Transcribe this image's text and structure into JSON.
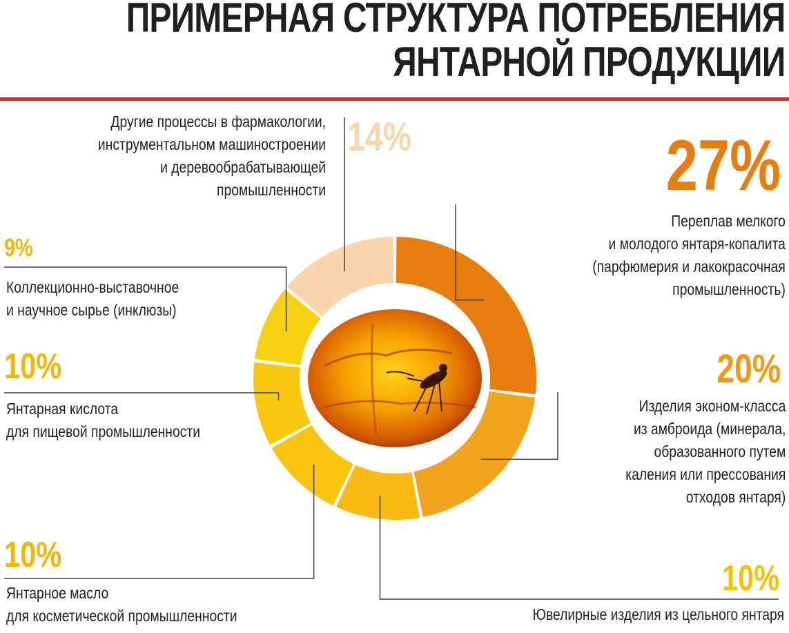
{
  "title": {
    "line1": "ПРИМЕРНАЯ СТРУКТУРА ПОТРЕБЛЕНИЯ",
    "line2": "ЯНТАРНОЙ ПРОДУКЦИИ"
  },
  "colors": {
    "rule": "#e2261c",
    "text": "#231f20"
  },
  "chart_data": {
    "type": "pie",
    "variant": "donut",
    "title": "ПРИМЕРНАЯ СТРУКТУРА ПОТРЕБЛЕНИЯ ЯНТАРНОЙ ПРОДУКЦИИ",
    "unit": "%",
    "slices": [
      {
        "value": 27,
        "label": "27%",
        "description": "Переплав мелкого\nи молодого янтаря-копалита\n(парфюмерия и лакокрасочная\nпромышленность)",
        "color": "#e87d0d"
      },
      {
        "value": 20,
        "label": "20%",
        "description": "Изделия эконом-класса\nиз амброида (минерала,\nобразованного путем\nкаления или прессования\nотходов янтаря)",
        "color": "#f3a21c"
      },
      {
        "value": 10,
        "label": "10%",
        "description": "Ювелирные изделия из цельного янтаря",
        "color": "#f7b912"
      },
      {
        "value": 10,
        "label": "10%",
        "description": "Янтарное масло\nдля косметической промышленности",
        "color": "#f8c40f"
      },
      {
        "value": 10,
        "label": "10%",
        "description": "Янтарная кислота\nдля пищевой промышленности",
        "color": "#f9c80e"
      },
      {
        "value": 9,
        "label": "9%",
        "description": "Коллекционно-выставочное\nи научное сырье (инклюзы)",
        "color": "#f6d10f"
      },
      {
        "value": 14,
        "label": "14%",
        "description": "Другие процессы в фармакологии,\nинструментальном машиностроении\nи деревообрабатывающей\nпромышленности",
        "color": "#f9d5ab"
      }
    ]
  }
}
